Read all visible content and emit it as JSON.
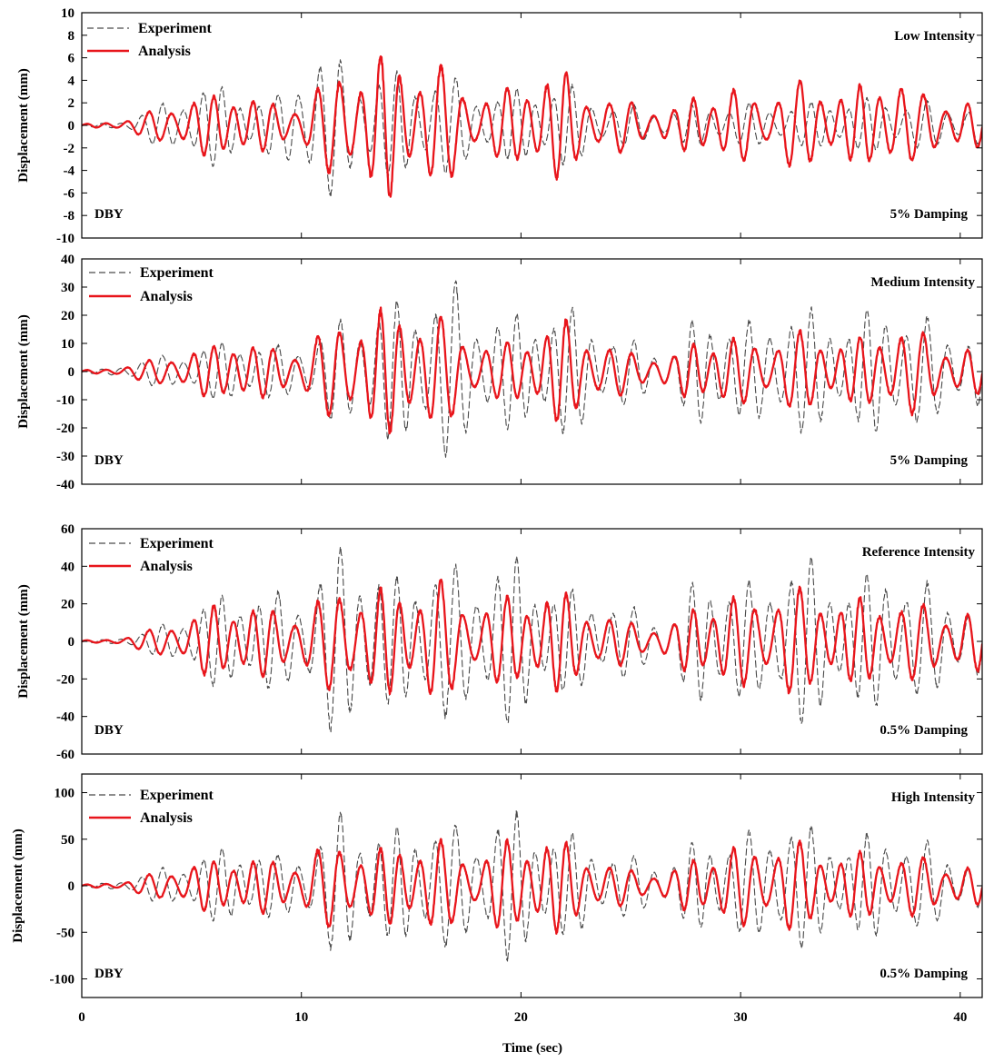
{
  "chart_data": [
    {
      "type": "line",
      "panel_id": "low",
      "ylabel": "Displacement (mm)",
      "ylim": [
        -10,
        10
      ],
      "yticks": [
        -10,
        -8,
        -6,
        -4,
        -2,
        0,
        2,
        4,
        6,
        8,
        10
      ],
      "xlim": [
        0,
        41
      ],
      "annotation_top": "Low Intensity",
      "annotation_left": "DBY",
      "annotation_right": "5% Damping",
      "series": [
        {
          "name": "Experiment",
          "color": "#4a4a4a",
          "style": "dashed",
          "envelope_x": [
            0,
            1,
            2,
            3,
            4,
            5,
            6,
            7,
            8,
            9,
            10,
            10.5,
            11,
            12,
            13,
            14,
            15,
            16,
            17,
            18,
            19,
            20,
            21,
            22,
            23,
            24,
            25,
            26,
            27,
            28,
            29,
            30,
            31,
            32,
            33,
            34,
            35,
            36,
            37,
            38,
            39,
            40,
            41
          ],
          "envelope_y": [
            0.1,
            0.2,
            0.5,
            1.5,
            2.5,
            3.5,
            4,
            3.5,
            2.5,
            3,
            6,
            7.5,
            7,
            6,
            5,
            5,
            5,
            5,
            4.5,
            3.5,
            3,
            3.5,
            4,
            4,
            3,
            2,
            2,
            1.5,
            1.5,
            2,
            2,
            2,
            2,
            2,
            2,
            2.5,
            2.5,
            2.5,
            2.5,
            2.5,
            2,
            2,
            2
          ]
        },
        {
          "name": "Analysis",
          "color": "#e8151b",
          "style": "solid",
          "envelope_x": [
            0,
            1,
            2,
            3,
            4,
            5,
            6,
            7,
            8,
            9,
            10,
            11,
            12,
            13,
            14,
            15,
            16,
            17,
            18,
            19,
            20,
            21,
            22,
            23,
            24,
            25,
            26,
            27,
            28,
            29,
            30,
            31,
            32,
            33,
            34,
            35,
            36,
            37,
            38,
            39,
            40,
            41
          ],
          "envelope_y": [
            0.1,
            0.3,
            0.6,
            1.2,
            2.3,
            2.5,
            3,
            3.8,
            2.5,
            2,
            2.5,
            4,
            6,
            6,
            7,
            6,
            6,
            5,
            3,
            3,
            4.5,
            5.3,
            5,
            3.5,
            2.5,
            2.5,
            2,
            1.5,
            3.5,
            3.5,
            3.5,
            2.5,
            4.5,
            4,
            4,
            3.5,
            4,
            6,
            3,
            3,
            2.5,
            2
          ]
        }
      ]
    },
    {
      "type": "line",
      "panel_id": "medium",
      "ylabel": "Displacement (mm)",
      "ylim": [
        -40,
        40
      ],
      "yticks": [
        -40,
        -30,
        -20,
        -10,
        0,
        10,
        20,
        30,
        40
      ],
      "xlim": [
        0,
        41
      ],
      "annotation_top": "Medium Intensity",
      "annotation_left": "DBY",
      "annotation_right": "5% Damping",
      "series": [
        {
          "name": "Experiment",
          "color": "#4a4a4a",
          "style": "dashed",
          "envelope_x": [
            0,
            1,
            2,
            3,
            4,
            5,
            6,
            7,
            8,
            9,
            10,
            11,
            12,
            13,
            14,
            15,
            16,
            17,
            18,
            19,
            20,
            21,
            22,
            23,
            24,
            25,
            26,
            27,
            28,
            29,
            30,
            31,
            32,
            33,
            34,
            35,
            36,
            37,
            38,
            39,
            40,
            41
          ],
          "envelope_y": [
            0.5,
            1,
            3,
            5,
            7,
            8,
            10,
            14,
            10,
            10,
            12,
            16,
            22,
            24,
            26,
            28,
            33,
            34,
            24,
            22,
            22,
            24,
            25,
            22,
            15,
            12,
            10,
            8,
            22,
            24,
            18,
            20,
            26,
            24,
            22,
            20,
            24,
            28,
            22,
            18,
            16,
            14
          ]
        },
        {
          "name": "Analysis",
          "color": "#e8151b",
          "style": "solid",
          "envelope_x": [
            0,
            1,
            2,
            3,
            4,
            5,
            6,
            7,
            8,
            9,
            10,
            11,
            12,
            13,
            14,
            15,
            16,
            17,
            18,
            19,
            20,
            21,
            22,
            23,
            24,
            25,
            26,
            27,
            28,
            29,
            30,
            31,
            32,
            33,
            34,
            35,
            36,
            37,
            38,
            39,
            40,
            41
          ],
          "envelope_y": [
            0.5,
            1,
            2.5,
            4,
            7,
            8,
            10,
            15,
            10,
            9,
            10,
            15,
            22,
            22,
            24,
            25,
            22,
            18,
            12,
            10,
            14,
            18,
            20,
            16,
            10,
            8,
            7,
            6,
            14,
            15,
            12,
            12,
            15,
            15,
            14,
            12,
            14,
            20,
            16,
            12,
            10,
            8
          ]
        }
      ]
    },
    {
      "type": "line",
      "panel_id": "reference",
      "ylabel": "Displacement (mm)",
      "ylim": [
        -60,
        60
      ],
      "yticks": [
        -60,
        -40,
        -20,
        0,
        20,
        40,
        60
      ],
      "xlim": [
        0,
        41
      ],
      "annotation_top": "Reference Intensity",
      "annotation_left": "DBY",
      "annotation_right": "0.5% Damping",
      "series": [
        {
          "name": "Experiment",
          "color": "#4a4a4a",
          "style": "dashed",
          "envelope_x": [
            0,
            1,
            2,
            3,
            4,
            5,
            6,
            7,
            8,
            9,
            10,
            11,
            12,
            13,
            14,
            15,
            16,
            17,
            18,
            19,
            20,
            21,
            22,
            23,
            24,
            25,
            26,
            27,
            28,
            29,
            30,
            31,
            32,
            33,
            34,
            35,
            36,
            37,
            38,
            39,
            40,
            41
          ],
          "envelope_y": [
            0.5,
            1,
            3,
            6,
            12,
            18,
            25,
            30,
            28,
            28,
            30,
            45,
            60,
            50,
            35,
            40,
            50,
            42,
            40,
            48,
            48,
            35,
            30,
            28,
            25,
            20,
            15,
            15,
            38,
            42,
            35,
            30,
            52,
            50,
            40,
            35,
            38,
            48,
            35,
            30,
            25,
            20
          ]
        },
        {
          "name": "Analysis",
          "color": "#e8151b",
          "style": "solid",
          "envelope_x": [
            0,
            1,
            2,
            3,
            4,
            5,
            6,
            7,
            8,
            9,
            10,
            11,
            12,
            13,
            14,
            15,
            16,
            17,
            18,
            19,
            20,
            21,
            22,
            23,
            24,
            25,
            26,
            27,
            28,
            29,
            30,
            31,
            32,
            33,
            34,
            35,
            36,
            37,
            38,
            39,
            40,
            41
          ],
          "envelope_y": [
            0.5,
            1,
            3,
            6,
            12,
            14,
            22,
            25,
            20,
            18,
            20,
            25,
            35,
            30,
            30,
            32,
            38,
            28,
            22,
            24,
            28,
            30,
            28,
            22,
            15,
            12,
            10,
            10,
            25,
            28,
            25,
            25,
            35,
            28,
            28,
            25,
            24,
            26,
            22,
            20,
            18,
            16
          ]
        }
      ]
    },
    {
      "type": "line",
      "panel_id": "high",
      "ylabel": "Displacement (mm)",
      "ylim": [
        -120,
        120
      ],
      "yticks": [
        -100,
        -50,
        0,
        50,
        100
      ],
      "xlim": [
        0,
        41
      ],
      "annotation_top": "High Intensity",
      "annotation_left": "DBY",
      "annotation_right": "0.5% Damping",
      "series": [
        {
          "name": "Experiment",
          "color": "#4a4a4a",
          "style": "dashed",
          "envelope_x": [
            0,
            1,
            2,
            3,
            4,
            5,
            6,
            7,
            8,
            9,
            10,
            11,
            12,
            13,
            14,
            15,
            16,
            17,
            18,
            19,
            20,
            21,
            22,
            23,
            24,
            25,
            26,
            27,
            28,
            29,
            30,
            31,
            32,
            33,
            34,
            35,
            36,
            37,
            38,
            39,
            40,
            41
          ],
          "envelope_y": [
            1,
            3,
            8,
            15,
            25,
            30,
            40,
            50,
            40,
            35,
            45,
            60,
            95,
            70,
            60,
            75,
            80,
            70,
            65,
            85,
            85,
            70,
            60,
            55,
            40,
            35,
            30,
            30,
            55,
            60,
            60,
            60,
            90,
            70,
            60,
            55,
            60,
            65,
            55,
            45,
            35,
            25
          ]
        },
        {
          "name": "Analysis",
          "color": "#e8151b",
          "style": "solid",
          "envelope_x": [
            0,
            1,
            2,
            3,
            4,
            5,
            6,
            7,
            8,
            9,
            10,
            11,
            12,
            13,
            14,
            15,
            16,
            17,
            18,
            19,
            20,
            21,
            22,
            23,
            24,
            25,
            26,
            27,
            28,
            29,
            30,
            31,
            32,
            33,
            34,
            35,
            36,
            37,
            38,
            39,
            40,
            41
          ],
          "envelope_y": [
            1,
            3,
            6,
            12,
            22,
            25,
            30,
            38,
            32,
            28,
            35,
            45,
            55,
            40,
            45,
            55,
            55,
            45,
            35,
            50,
            55,
            62,
            50,
            40,
            25,
            20,
            18,
            18,
            40,
            45,
            45,
            45,
            60,
            45,
            40,
            38,
            38,
            40,
            35,
            30,
            25,
            20
          ]
        }
      ]
    }
  ],
  "x_axis": {
    "xlabel": "Time (sec)",
    "xticks": [
      0,
      10,
      20,
      30,
      40
    ]
  }
}
